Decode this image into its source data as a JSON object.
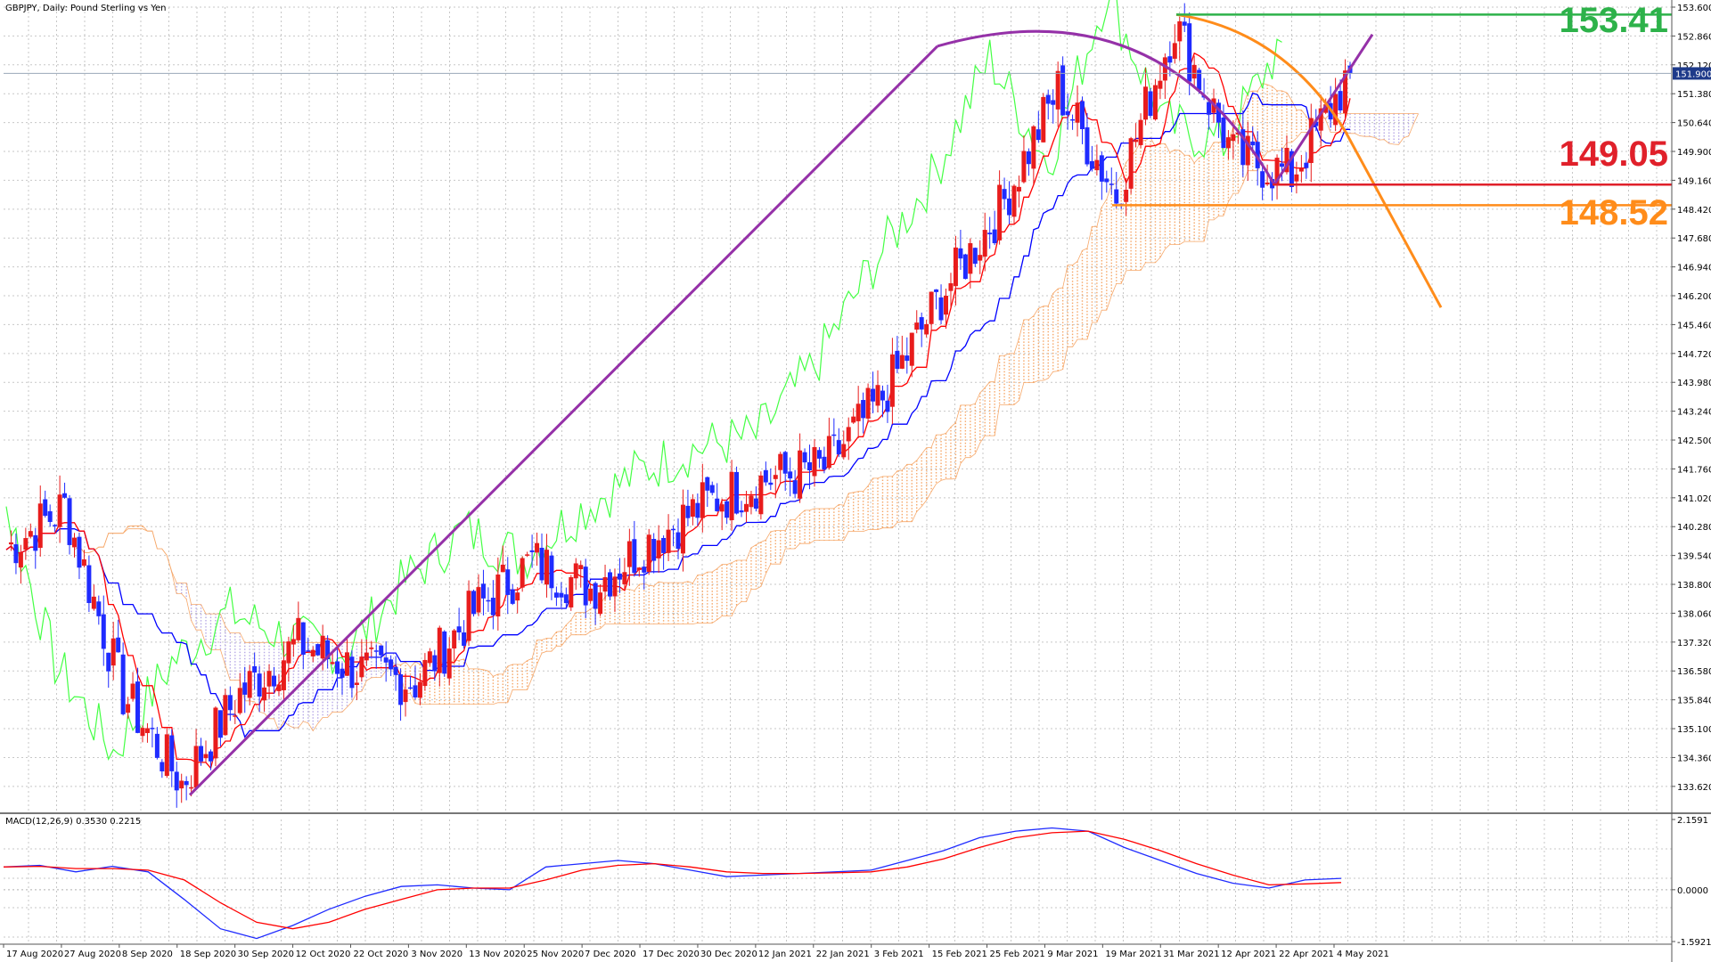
{
  "colors": {
    "bull": "#e81c1c",
    "bear": "#1f2bff",
    "tenkan": "#ff0000",
    "kijun": "#0000ff",
    "chikou": "#44ff44",
    "cloud": "#f6a86a",
    "grid": "#c7c7c7",
    "purple": "#9531a8",
    "orange": "#ff8c1a",
    "green_level": "#2db24a",
    "red_level": "#e0202a",
    "macd_line": "#1f2bff",
    "signal_line": "#ff0000"
  },
  "chart_data": [
    {
      "type": "candlestick",
      "title": "GBPJPY, Daily:  Pound Sterling vs Yen",
      "ylim": [
        133.0,
        153.6
      ],
      "yticks": [
        "153.600",
        "152.860",
        "152.120",
        "151.380",
        "150.640",
        "149.900",
        "149.160",
        "148.420",
        "147.680",
        "146.940",
        "146.200",
        "145.460",
        "144.720",
        "143.980",
        "143.240",
        "142.500",
        "141.760",
        "141.020",
        "140.280",
        "139.540",
        "138.800",
        "138.060",
        "137.320",
        "136.580",
        "135.840",
        "135.100",
        "134.360",
        "133.620"
      ],
      "current_price": "151.900",
      "xticks": [
        "17 Aug 2020",
        "27 Aug 2020",
        "8 Sep 2020",
        "18 Sep 2020",
        "30 Sep 2020",
        "12 Oct 2020",
        "22 Oct 2020",
        "3 Nov 2020",
        "13 Nov 2020",
        "25 Nov 2020",
        "7 Dec 2020",
        "17 Dec 2020",
        "30 Dec 2020",
        "12 Jan 2021",
        "22 Jan 2021",
        "3 Feb 2021",
        "15 Feb 2021",
        "25 Feb 2021",
        "9 Mar 2021",
        "19 Mar 2021",
        "31 Mar 2021",
        "12 Apr 2021",
        "22 Apr 2021",
        "4 May 2021"
      ],
      "series_path": [
        [
          "17 Aug 2020",
          139.7
        ],
        [
          "27 Aug 2020",
          140.8
        ],
        [
          "8 Sep 2020",
          136.0
        ],
        [
          "18 Sep 2020",
          133.7
        ],
        [
          "30 Sep 2020",
          136.0
        ],
        [
          "12 Oct 2020",
          137.3
        ],
        [
          "22 Oct 2020",
          136.6
        ],
        [
          "3 Nov 2020",
          136.3
        ],
        [
          "13 Nov 2020",
          138.1
        ],
        [
          "25 Nov 2020",
          139.4
        ],
        [
          "7 Dec 2020",
          138.7
        ],
        [
          "17 Dec 2020",
          139.9
        ],
        [
          "30 Dec 2020",
          140.9
        ],
        [
          "12 Jan 2021",
          141.5
        ],
        [
          "22 Jan 2021",
          141.8
        ],
        [
          "3 Feb 2021",
          143.6
        ],
        [
          "15 Feb 2021",
          146.2
        ],
        [
          "25 Feb 2021",
          148.4
        ],
        [
          "9 Mar 2021",
          151.5
        ],
        [
          "19 Mar 2021",
          148.8
        ],
        [
          "31 Mar 2021",
          153.2
        ],
        [
          "12 Apr 2021",
          149.8
        ],
        [
          "22 Apr 2021",
          149.3
        ],
        [
          "4 May 2021",
          151.9
        ]
      ],
      "levels": [
        {
          "label": "153.41",
          "value": 153.41,
          "color": "#2db24a"
        },
        {
          "label": "149.05",
          "value": 149.05,
          "color": "#e0202a"
        },
        {
          "label": "148.52",
          "value": 148.52,
          "color": "#ff8c1a"
        }
      ],
      "indicators": [
        "Ichimoku Kinko Hyo"
      ]
    },
    {
      "type": "line",
      "title": "MACD(12,26,9) 0.3530 0.2215",
      "ylim": [
        -1.5921,
        2.1591
      ],
      "yticks": [
        "2.1591",
        "0.0000",
        "-1.5921"
      ],
      "series": [
        {
          "name": "MACD",
          "values": [
            0.7,
            0.75,
            0.55,
            0.72,
            0.55,
            -0.3,
            -1.2,
            -1.5,
            -1.1,
            -0.6,
            -0.2,
            0.1,
            0.15,
            0.05,
            0.0,
            0.7,
            0.8,
            0.9,
            0.8,
            0.6,
            0.4,
            0.45,
            0.5,
            0.55,
            0.6,
            0.9,
            1.2,
            1.6,
            1.8,
            1.9,
            1.8,
            1.3,
            0.9,
            0.5,
            0.2,
            0.05,
            0.3,
            0.35
          ]
        },
        {
          "name": "Signal",
          "values": [
            0.7,
            0.72,
            0.65,
            0.65,
            0.6,
            0.3,
            -0.4,
            -1.0,
            -1.2,
            -1.0,
            -0.6,
            -0.3,
            0.0,
            0.05,
            0.05,
            0.3,
            0.6,
            0.75,
            0.8,
            0.7,
            0.55,
            0.5,
            0.5,
            0.52,
            0.55,
            0.7,
            0.95,
            1.3,
            1.6,
            1.75,
            1.8,
            1.55,
            1.2,
            0.8,
            0.45,
            0.15,
            0.18,
            0.22
          ]
        }
      ]
    }
  ]
}
